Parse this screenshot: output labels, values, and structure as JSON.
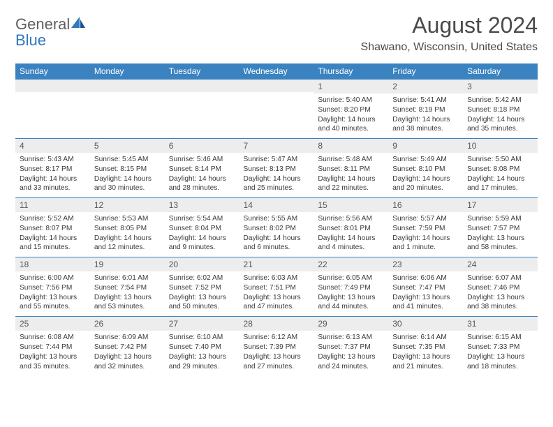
{
  "brand": {
    "general": "General",
    "blue": "Blue"
  },
  "header": {
    "title": "August 2024",
    "location": "Shawano, Wisconsin, United States"
  },
  "colors": {
    "accent": "#3b83c0",
    "daynum_bg": "#ededed",
    "text": "#333333"
  },
  "dayNames": [
    "Sunday",
    "Monday",
    "Tuesday",
    "Wednesday",
    "Thursday",
    "Friday",
    "Saturday"
  ],
  "weeks": [
    [
      null,
      null,
      null,
      null,
      {
        "n": "1",
        "sr": "Sunrise: 5:40 AM",
        "ss": "Sunset: 8:20 PM",
        "d1": "Daylight: 14 hours",
        "d2": "and 40 minutes."
      },
      {
        "n": "2",
        "sr": "Sunrise: 5:41 AM",
        "ss": "Sunset: 8:19 PM",
        "d1": "Daylight: 14 hours",
        "d2": "and 38 minutes."
      },
      {
        "n": "3",
        "sr": "Sunrise: 5:42 AM",
        "ss": "Sunset: 8:18 PM",
        "d1": "Daylight: 14 hours",
        "d2": "and 35 minutes."
      }
    ],
    [
      {
        "n": "4",
        "sr": "Sunrise: 5:43 AM",
        "ss": "Sunset: 8:17 PM",
        "d1": "Daylight: 14 hours",
        "d2": "and 33 minutes."
      },
      {
        "n": "5",
        "sr": "Sunrise: 5:45 AM",
        "ss": "Sunset: 8:15 PM",
        "d1": "Daylight: 14 hours",
        "d2": "and 30 minutes."
      },
      {
        "n": "6",
        "sr": "Sunrise: 5:46 AM",
        "ss": "Sunset: 8:14 PM",
        "d1": "Daylight: 14 hours",
        "d2": "and 28 minutes."
      },
      {
        "n": "7",
        "sr": "Sunrise: 5:47 AM",
        "ss": "Sunset: 8:13 PM",
        "d1": "Daylight: 14 hours",
        "d2": "and 25 minutes."
      },
      {
        "n": "8",
        "sr": "Sunrise: 5:48 AM",
        "ss": "Sunset: 8:11 PM",
        "d1": "Daylight: 14 hours",
        "d2": "and 22 minutes."
      },
      {
        "n": "9",
        "sr": "Sunrise: 5:49 AM",
        "ss": "Sunset: 8:10 PM",
        "d1": "Daylight: 14 hours",
        "d2": "and 20 minutes."
      },
      {
        "n": "10",
        "sr": "Sunrise: 5:50 AM",
        "ss": "Sunset: 8:08 PM",
        "d1": "Daylight: 14 hours",
        "d2": "and 17 minutes."
      }
    ],
    [
      {
        "n": "11",
        "sr": "Sunrise: 5:52 AM",
        "ss": "Sunset: 8:07 PM",
        "d1": "Daylight: 14 hours",
        "d2": "and 15 minutes."
      },
      {
        "n": "12",
        "sr": "Sunrise: 5:53 AM",
        "ss": "Sunset: 8:05 PM",
        "d1": "Daylight: 14 hours",
        "d2": "and 12 minutes."
      },
      {
        "n": "13",
        "sr": "Sunrise: 5:54 AM",
        "ss": "Sunset: 8:04 PM",
        "d1": "Daylight: 14 hours",
        "d2": "and 9 minutes."
      },
      {
        "n": "14",
        "sr": "Sunrise: 5:55 AM",
        "ss": "Sunset: 8:02 PM",
        "d1": "Daylight: 14 hours",
        "d2": "and 6 minutes."
      },
      {
        "n": "15",
        "sr": "Sunrise: 5:56 AM",
        "ss": "Sunset: 8:01 PM",
        "d1": "Daylight: 14 hours",
        "d2": "and 4 minutes."
      },
      {
        "n": "16",
        "sr": "Sunrise: 5:57 AM",
        "ss": "Sunset: 7:59 PM",
        "d1": "Daylight: 14 hours",
        "d2": "and 1 minute."
      },
      {
        "n": "17",
        "sr": "Sunrise: 5:59 AM",
        "ss": "Sunset: 7:57 PM",
        "d1": "Daylight: 13 hours",
        "d2": "and 58 minutes."
      }
    ],
    [
      {
        "n": "18",
        "sr": "Sunrise: 6:00 AM",
        "ss": "Sunset: 7:56 PM",
        "d1": "Daylight: 13 hours",
        "d2": "and 55 minutes."
      },
      {
        "n": "19",
        "sr": "Sunrise: 6:01 AM",
        "ss": "Sunset: 7:54 PM",
        "d1": "Daylight: 13 hours",
        "d2": "and 53 minutes."
      },
      {
        "n": "20",
        "sr": "Sunrise: 6:02 AM",
        "ss": "Sunset: 7:52 PM",
        "d1": "Daylight: 13 hours",
        "d2": "and 50 minutes."
      },
      {
        "n": "21",
        "sr": "Sunrise: 6:03 AM",
        "ss": "Sunset: 7:51 PM",
        "d1": "Daylight: 13 hours",
        "d2": "and 47 minutes."
      },
      {
        "n": "22",
        "sr": "Sunrise: 6:05 AM",
        "ss": "Sunset: 7:49 PM",
        "d1": "Daylight: 13 hours",
        "d2": "and 44 minutes."
      },
      {
        "n": "23",
        "sr": "Sunrise: 6:06 AM",
        "ss": "Sunset: 7:47 PM",
        "d1": "Daylight: 13 hours",
        "d2": "and 41 minutes."
      },
      {
        "n": "24",
        "sr": "Sunrise: 6:07 AM",
        "ss": "Sunset: 7:46 PM",
        "d1": "Daylight: 13 hours",
        "d2": "and 38 minutes."
      }
    ],
    [
      {
        "n": "25",
        "sr": "Sunrise: 6:08 AM",
        "ss": "Sunset: 7:44 PM",
        "d1": "Daylight: 13 hours",
        "d2": "and 35 minutes."
      },
      {
        "n": "26",
        "sr": "Sunrise: 6:09 AM",
        "ss": "Sunset: 7:42 PM",
        "d1": "Daylight: 13 hours",
        "d2": "and 32 minutes."
      },
      {
        "n": "27",
        "sr": "Sunrise: 6:10 AM",
        "ss": "Sunset: 7:40 PM",
        "d1": "Daylight: 13 hours",
        "d2": "and 29 minutes."
      },
      {
        "n": "28",
        "sr": "Sunrise: 6:12 AM",
        "ss": "Sunset: 7:39 PM",
        "d1": "Daylight: 13 hours",
        "d2": "and 27 minutes."
      },
      {
        "n": "29",
        "sr": "Sunrise: 6:13 AM",
        "ss": "Sunset: 7:37 PM",
        "d1": "Daylight: 13 hours",
        "d2": "and 24 minutes."
      },
      {
        "n": "30",
        "sr": "Sunrise: 6:14 AM",
        "ss": "Sunset: 7:35 PM",
        "d1": "Daylight: 13 hours",
        "d2": "and 21 minutes."
      },
      {
        "n": "31",
        "sr": "Sunrise: 6:15 AM",
        "ss": "Sunset: 7:33 PM",
        "d1": "Daylight: 13 hours",
        "d2": "and 18 minutes."
      }
    ]
  ]
}
